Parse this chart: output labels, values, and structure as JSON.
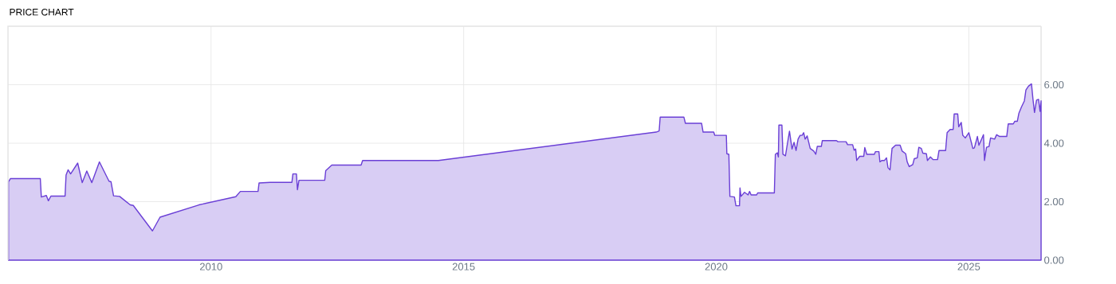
{
  "chart_data": {
    "type": "area",
    "title": "PRICE CHART",
    "xlim": [
      2005.98,
      2026.43
    ],
    "xticks": [
      2010,
      2015,
      2020,
      2025
    ],
    "ylim": [
      0,
      8
    ],
    "yticks": [
      {
        "value": 0,
        "label": "0.00"
      },
      {
        "value": 2,
        "label": "2.00"
      },
      {
        "value": 4,
        "label": "4.00"
      },
      {
        "value": 6,
        "label": "6.00"
      }
    ],
    "grid": true,
    "series": [
      {
        "color": "#6a3fd6",
        "x": [
          2005.99,
          2006.03,
          2006.62,
          2006.64,
          2006.74,
          2006.78,
          2006.83,
          2007.11,
          2007.13,
          2007.17,
          2007.22,
          2007.36,
          2007.45,
          2007.54,
          2007.64,
          2007.79,
          2007.98,
          2008.02,
          2008.07,
          2008.19,
          2008.4,
          2008.46,
          2008.84,
          2008.99,
          2009.76,
          2010.49,
          2010.58,
          2010.93,
          2010.95,
          2011.17,
          2011.6,
          2011.62,
          2011.69,
          2011.71,
          2011.74,
          2012.25,
          2012.27,
          2012.39,
          2012.97,
          2013.0,
          2014.5,
          2018.81,
          2018.87,
          2018.89,
          2019.36,
          2019.39,
          2019.71,
          2019.74,
          2019.95,
          2019.97,
          2020.2,
          2020.21,
          2020.25,
          2020.27,
          2020.36,
          2020.39,
          2020.46,
          2020.47,
          2020.49,
          2020.56,
          2020.63,
          2020.66,
          2020.69,
          2020.8,
          2020.82,
          2021.15,
          2021.17,
          2021.21,
          2021.23,
          2021.24,
          2021.3,
          2021.32,
          2021.37,
          2021.41,
          2021.45,
          2021.5,
          2021.54,
          2021.58,
          2021.62,
          2021.66,
          2021.7,
          2021.73,
          2021.76,
          2021.8,
          2021.86,
          2021.93,
          2021.97,
          2022.0,
          2022.08,
          2022.1,
          2022.38,
          2022.41,
          2022.57,
          2022.6,
          2022.7,
          2022.73,
          2022.76,
          2022.78,
          2022.84,
          2022.92,
          2022.94,
          2022.98,
          2023.13,
          2023.15,
          2023.22,
          2023.24,
          2023.28,
          2023.33,
          2023.37,
          2023.4,
          2023.44,
          2023.48,
          2023.55,
          2023.64,
          2023.68,
          2023.75,
          2023.78,
          2023.82,
          2023.89,
          2023.92,
          2023.98,
          2024.01,
          2024.06,
          2024.09,
          2024.16,
          2024.18,
          2024.24,
          2024.29,
          2024.38,
          2024.41,
          2024.54,
          2024.57,
          2024.63,
          2024.69,
          2024.71,
          2024.78,
          2024.8,
          2024.85,
          2024.88,
          2024.93,
          2025.0,
          2025.08,
          2025.11,
          2025.17,
          2025.2,
          2025.24,
          2025.29,
          2025.31,
          2025.35,
          2025.4,
          2025.43,
          2025.51,
          2025.55,
          2025.61,
          2025.75,
          2025.78,
          2025.88,
          2025.91,
          2025.96,
          2025.99,
          2026.04,
          2026.1,
          2026.13,
          2026.18,
          2026.24,
          2026.27,
          2026.3,
          2026.34,
          2026.38,
          2026.41,
          2026.43
        ],
        "values": [
          2.68,
          2.79,
          2.79,
          2.16,
          2.21,
          2.03,
          2.19,
          2.19,
          2.91,
          3.09,
          2.95,
          3.32,
          2.65,
          3.05,
          2.65,
          3.36,
          2.7,
          2.68,
          2.2,
          2.18,
          1.89,
          1.87,
          1.0,
          1.47,
          1.89,
          2.17,
          2.35,
          2.35,
          2.64,
          2.66,
          2.66,
          2.95,
          2.95,
          2.41,
          2.73,
          2.73,
          3.06,
          3.25,
          3.25,
          3.41,
          3.41,
          4.38,
          4.42,
          4.89,
          4.89,
          4.68,
          4.68,
          4.38,
          4.38,
          4.27,
          4.27,
          3.64,
          3.62,
          2.18,
          2.16,
          1.86,
          1.86,
          2.47,
          2.18,
          2.32,
          2.23,
          2.35,
          2.23,
          2.23,
          2.3,
          2.3,
          3.62,
          3.67,
          3.53,
          4.62,
          4.62,
          3.62,
          3.57,
          4.0,
          4.41,
          3.8,
          4.03,
          3.75,
          4.14,
          4.27,
          4.27,
          4.36,
          4.14,
          4.25,
          3.82,
          3.73,
          3.62,
          3.89,
          3.89,
          4.09,
          4.09,
          4.05,
          4.05,
          3.95,
          3.95,
          3.76,
          3.8,
          3.41,
          3.55,
          3.55,
          3.85,
          3.62,
          3.62,
          3.71,
          3.71,
          3.36,
          3.41,
          3.41,
          3.5,
          3.16,
          3.09,
          3.82,
          3.93,
          3.93,
          3.73,
          3.64,
          3.36,
          3.2,
          3.27,
          3.47,
          3.5,
          3.86,
          3.82,
          3.66,
          3.64,
          3.41,
          3.53,
          3.44,
          3.44,
          3.75,
          3.75,
          4.36,
          4.47,
          4.47,
          5.0,
          5.0,
          4.56,
          4.71,
          4.27,
          4.18,
          4.36,
          3.82,
          3.84,
          4.23,
          3.93,
          4.09,
          4.29,
          3.41,
          3.86,
          3.89,
          4.18,
          4.14,
          4.29,
          4.23,
          4.23,
          4.66,
          4.66,
          4.75,
          4.75,
          5.02,
          5.23,
          5.45,
          5.82,
          5.95,
          6.03,
          5.5,
          5.05,
          5.47,
          5.5,
          5.09,
          5.45
        ]
      }
    ]
  }
}
